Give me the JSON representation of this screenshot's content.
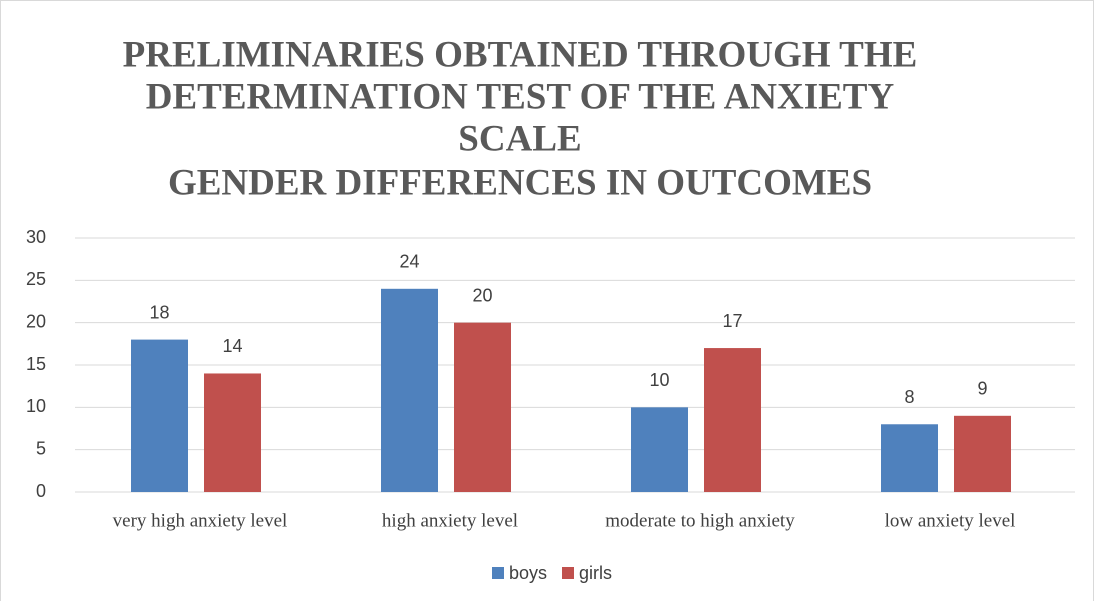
{
  "chart_data": {
    "type": "bar",
    "title": [
      "PRELIMINARIES OBTAINED THROUGH THE",
      "DETERMINATION TEST OF THE ANXIETY",
      "SCALE",
      "GENDER DIFFERENCES IN OUTCOMES"
    ],
    "categories": [
      "very high anxiety level",
      "high anxiety level",
      "moderate to high anxiety",
      "low anxiety level"
    ],
    "series": [
      {
        "name": "boys",
        "color": "#4f81bd",
        "values": [
          18,
          24,
          10,
          8
        ]
      },
      {
        "name": "girls",
        "color": "#c0504d",
        "values": [
          14,
          20,
          17,
          9
        ]
      }
    ],
    "ylim": [
      0,
      30
    ],
    "yticks": [
      0,
      5,
      10,
      15,
      20,
      25,
      30
    ],
    "grid": true,
    "legend": "bottom"
  }
}
